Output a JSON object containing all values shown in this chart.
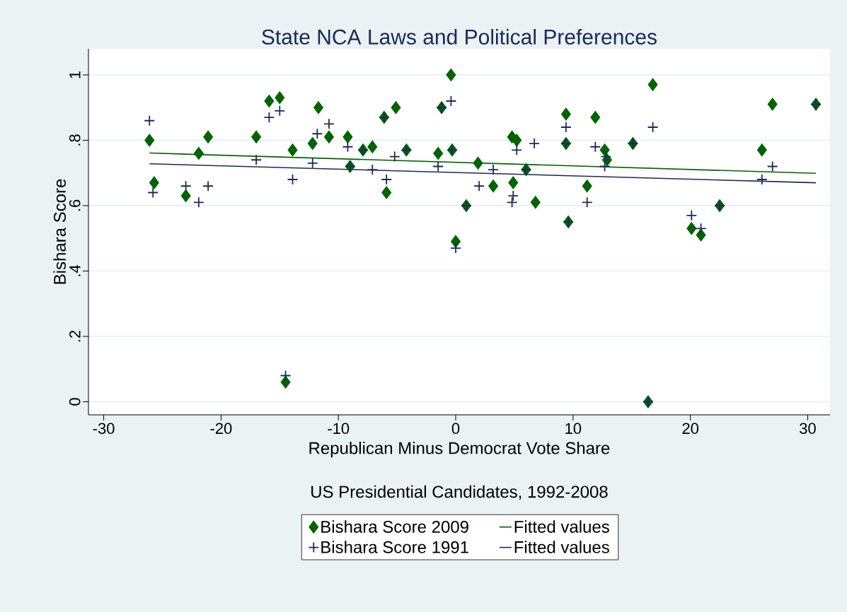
{
  "chart_data": {
    "type": "scatter",
    "title": "State NCA Laws and Political Preferences",
    "xlabel": "Republican Minus Democrat Vote Share",
    "ylabel": "Bishara Score",
    "annotations": [
      "US Presidential Candidates, 1992-2008"
    ],
    "xlim": [
      -31.3,
      31.9
    ],
    "ylim": [
      -0.04,
      1.08
    ],
    "xticks": [
      -30,
      -20,
      -10,
      0,
      10,
      20,
      30
    ],
    "yticks": [
      {
        "value": 0,
        "label": "0"
      },
      {
        "value": 0.2,
        "label": ".2"
      },
      {
        "value": 0.4,
        "label": ".4"
      },
      {
        "value": 0.6,
        "label": ".6"
      },
      {
        "value": 0.8,
        "label": ".8"
      },
      {
        "value": 1,
        "label": "1"
      }
    ],
    "grid": "y",
    "legend": "bottom",
    "series": [
      {
        "name": "Bishara Score 2009",
        "marker": "diamond",
        "color": "#006400",
        "x": [
          -26.1,
          -25.7,
          -23.0,
          -21.9,
          -21.1,
          -17.0,
          -15.9,
          -15.0,
          -14.5,
          -13.9,
          -12.2,
          -11.7,
          -10.8,
          -9.2,
          -9.0,
          -7.9,
          -7.1,
          -6.1,
          -5.9,
          -5.1,
          -4.2,
          -1.5,
          -1.2,
          -0.4,
          -0.3,
          0.0,
          0.9,
          1.9,
          3.2,
          4.8,
          5.2,
          4.9,
          6.0,
          6.8,
          9.4,
          9.4,
          9.6,
          11.2,
          11.9,
          12.7,
          12.9,
          15.1,
          16.4,
          16.8,
          20.1,
          20.9,
          22.5,
          26.1,
          27.0,
          30.7
        ],
        "values": [
          0.8,
          0.67,
          0.63,
          0.76,
          0.81,
          0.81,
          0.92,
          0.93,
          0.06,
          0.77,
          0.79,
          0.9,
          0.81,
          0.81,
          0.72,
          0.77,
          0.78,
          0.87,
          0.64,
          0.9,
          0.77,
          0.76,
          0.9,
          1.0,
          0.77,
          0.49,
          0.6,
          0.73,
          0.66,
          0.81,
          0.8,
          0.67,
          0.71,
          0.61,
          0.88,
          0.79,
          0.55,
          0.66,
          0.87,
          0.77,
          0.74,
          0.79,
          0.0,
          0.97,
          0.53,
          0.51,
          0.6,
          0.77,
          0.91,
          0.91
        ]
      },
      {
        "name": "Fitted values",
        "type": "line",
        "marker": "none",
        "line_style": "solid",
        "color": "#006400",
        "x": [
          -26.1,
          30.7
        ],
        "values": [
          0.761,
          0.699
        ]
      },
      {
        "name": "Bishara Score 1991",
        "marker": "cross",
        "color": "#1c2a5c",
        "x": [
          -26.1,
          -25.8,
          -23.0,
          -21.9,
          -21.1,
          -17.0,
          -15.9,
          -15.0,
          -14.5,
          -13.9,
          -12.2,
          -11.8,
          -10.8,
          -9.2,
          -9.0,
          -7.9,
          -7.1,
          -6.1,
          -5.9,
          -5.2,
          -4.2,
          -1.5,
          -1.2,
          -0.4,
          -0.3,
          0.0,
          0.9,
          2.0,
          3.2,
          4.8,
          4.9,
          5.2,
          6.0,
          6.7,
          9.4,
          9.4,
          9.6,
          11.2,
          11.9,
          12.7,
          12.8,
          15.1,
          16.4,
          16.8,
          20.1,
          20.9,
          22.5,
          26.1,
          27.0,
          30.7
        ],
        "values": [
          0.86,
          0.64,
          0.66,
          0.61,
          0.66,
          0.74,
          0.87,
          0.89,
          0.08,
          0.68,
          0.73,
          0.82,
          0.85,
          0.78,
          0.72,
          0.77,
          0.71,
          0.87,
          0.68,
          0.75,
          0.77,
          0.72,
          0.9,
          0.92,
          0.77,
          0.47,
          0.6,
          0.66,
          0.71,
          0.61,
          0.63,
          0.77,
          0.71,
          0.79,
          0.84,
          0.79,
          0.55,
          0.61,
          0.78,
          0.72,
          0.75,
          0.79,
          0.0,
          0.84,
          0.57,
          0.53,
          0.6,
          0.68,
          0.72,
          0.91
        ]
      },
      {
        "name": "Fitted values",
        "type": "line",
        "marker": "none",
        "line_style": "solid",
        "color": "#1c2a5c",
        "x": [
          -26.1,
          30.7
        ],
        "values": [
          0.728,
          0.67
        ]
      }
    ]
  }
}
